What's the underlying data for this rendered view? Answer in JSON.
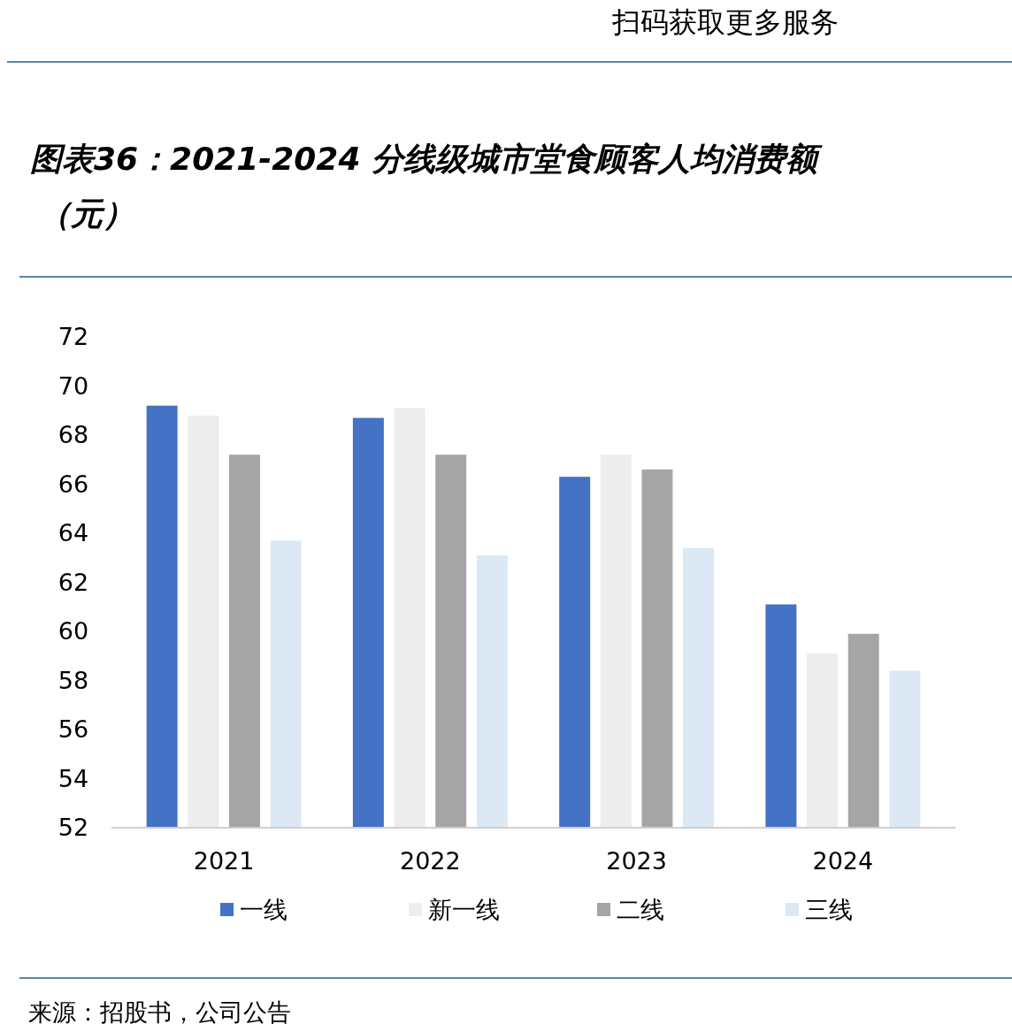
{
  "chart_data": {
    "type": "bar",
    "title": "图表36：2021-2024 分线级城市堂食顾客人均消费额（元）",
    "categories": [
      "2021",
      "2022",
      "2023",
      "2024"
    ],
    "series": [
      {
        "name": "一线",
        "color": "#4472c4",
        "values": [
          69.2,
          68.7,
          66.3,
          61.1
        ]
      },
      {
        "name": "新一线",
        "color": "#ededed",
        "values": [
          68.8,
          69.1,
          67.2,
          59.1
        ]
      },
      {
        "name": "二线",
        "color": "#a5a5a5",
        "values": [
          67.2,
          67.2,
          66.6,
          59.9
        ]
      },
      {
        "name": "三线",
        "color": "#dde8f5",
        "values": [
          63.7,
          63.1,
          63.4,
          58.4
        ]
      }
    ],
    "ylim": [
      52,
      72
    ],
    "yticks": [
      52,
      54,
      56,
      58,
      60,
      62,
      64,
      66,
      68,
      70,
      72
    ],
    "grid": false,
    "legend": "bottom",
    "annotations": [
      "扫码获取更多服务",
      "来源：招股书，公司公告"
    ]
  }
}
